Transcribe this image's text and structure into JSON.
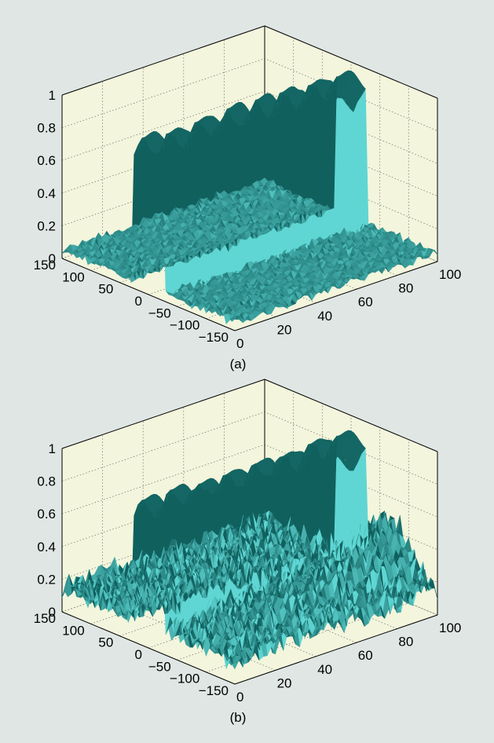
{
  "figure": {
    "background": "#dfe6e3",
    "pane_color": "#f3f5dc",
    "surface_dark": "#10605e",
    "surface_light": "#5fd6d3"
  },
  "chart_data": [
    {
      "type": "surface",
      "caption": "(a)",
      "z_ticks": [
        "0",
        "0.2",
        "0.4",
        "0.6",
        "0.8",
        "1"
      ],
      "y_ticks": [
        "150",
        "100",
        "50",
        "0",
        "−50",
        "−100",
        "−150"
      ],
      "x_ticks": [
        "0",
        "20",
        "40",
        "60",
        "80",
        "100"
      ],
      "xlim": [
        0,
        100
      ],
      "ylim": [
        -150,
        150
      ],
      "zlim": [
        0,
        1
      ],
      "grid": true,
      "ridge": {
        "y_center": 0,
        "height": 0.9
      },
      "noise_level": 0.05
    },
    {
      "type": "surface",
      "caption": "(b)",
      "z_ticks": [
        "0",
        "0.2",
        "0.4",
        "0.6",
        "0.8",
        "1"
      ],
      "y_ticks": [
        "150",
        "100",
        "50",
        "0",
        "−50",
        "−100",
        "−150"
      ],
      "x_ticks": [
        "0",
        "20",
        "40",
        "60",
        "80",
        "100"
      ],
      "xlim": [
        0,
        100
      ],
      "ylim": [
        -150,
        150
      ],
      "zlim": [
        0,
        1
      ],
      "grid": true,
      "ridge": {
        "y_center": 0,
        "height": 0.85
      },
      "noise_level": 0.2
    }
  ]
}
